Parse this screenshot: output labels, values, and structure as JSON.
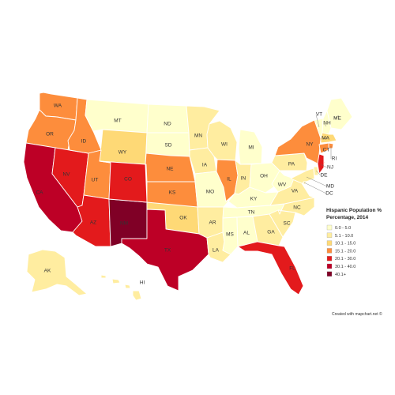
{
  "legend": {
    "title_line1": "Hispanic Population %",
    "title_line2": "Percentage, 2014",
    "items": [
      {
        "label": "0.0 - 5.0",
        "color": "#FFFFCC"
      },
      {
        "label": "5.1 - 10.0",
        "color": "#FFEDA0"
      },
      {
        "label": "10.1 - 15.0",
        "color": "#FED976"
      },
      {
        "label": "15.1 - 20.0",
        "color": "#FD8D3C"
      },
      {
        "label": "20.1 - 30.0",
        "color": "#E31A1C"
      },
      {
        "label": "30.1 - 40.0",
        "color": "#BD0026"
      },
      {
        "label": "40.1+",
        "color": "#800026"
      }
    ]
  },
  "credit": "Created with mapchart.net ©",
  "states": [
    {
      "abbr": "WA",
      "class": 3
    },
    {
      "abbr": "OR",
      "class": 3
    },
    {
      "abbr": "CA",
      "class": 5
    },
    {
      "abbr": "NV",
      "class": 4
    },
    {
      "abbr": "ID",
      "class": 3
    },
    {
      "abbr": "MT",
      "class": 0
    },
    {
      "abbr": "WY",
      "class": 2
    },
    {
      "abbr": "UT",
      "class": 3
    },
    {
      "abbr": "AZ",
      "class": 4
    },
    {
      "abbr": "NM",
      "class": 6
    },
    {
      "abbr": "CO",
      "class": 4
    },
    {
      "abbr": "ND",
      "class": 0
    },
    {
      "abbr": "SD",
      "class": 0
    },
    {
      "abbr": "NE",
      "class": 3
    },
    {
      "abbr": "KS",
      "class": 3
    },
    {
      "abbr": "OK",
      "class": 2
    },
    {
      "abbr": "TX",
      "class": 5
    },
    {
      "abbr": "MN",
      "class": 1
    },
    {
      "abbr": "IA",
      "class": 1
    },
    {
      "abbr": "MO",
      "class": 0
    },
    {
      "abbr": "AR",
      "class": 1
    },
    {
      "abbr": "LA",
      "class": 1
    },
    {
      "abbr": "WI",
      "class": 1
    },
    {
      "abbr": "IL",
      "class": 3
    },
    {
      "abbr": "MI",
      "class": 0
    },
    {
      "abbr": "IN",
      "class": 1
    },
    {
      "abbr": "OH",
      "class": 0
    },
    {
      "abbr": "KY",
      "class": 0
    },
    {
      "abbr": "TN",
      "class": 0
    },
    {
      "abbr": "MS",
      "class": 0
    },
    {
      "abbr": "AL",
      "class": 0
    },
    {
      "abbr": "GA",
      "class": 1
    },
    {
      "abbr": "FL",
      "class": 4
    },
    {
      "abbr": "SC",
      "class": 1
    },
    {
      "abbr": "NC",
      "class": 1
    },
    {
      "abbr": "VA",
      "class": 1
    },
    {
      "abbr": "WV",
      "class": 0
    },
    {
      "abbr": "PA",
      "class": 1
    },
    {
      "abbr": "NY",
      "class": 3
    },
    {
      "abbr": "VT",
      "class": 0
    },
    {
      "abbr": "NH",
      "class": 0
    },
    {
      "abbr": "ME",
      "class": 0
    },
    {
      "abbr": "MA",
      "class": 2
    },
    {
      "abbr": "RI",
      "class": 3
    },
    {
      "abbr": "CT",
      "class": 3
    },
    {
      "abbr": "NJ",
      "class": 4
    },
    {
      "abbr": "DE",
      "class": 1
    },
    {
      "abbr": "MD",
      "class": 1
    },
    {
      "abbr": "DC",
      "class": 1
    },
    {
      "abbr": "AK",
      "class": 1
    },
    {
      "abbr": "HI",
      "class": 1
    }
  ]
}
